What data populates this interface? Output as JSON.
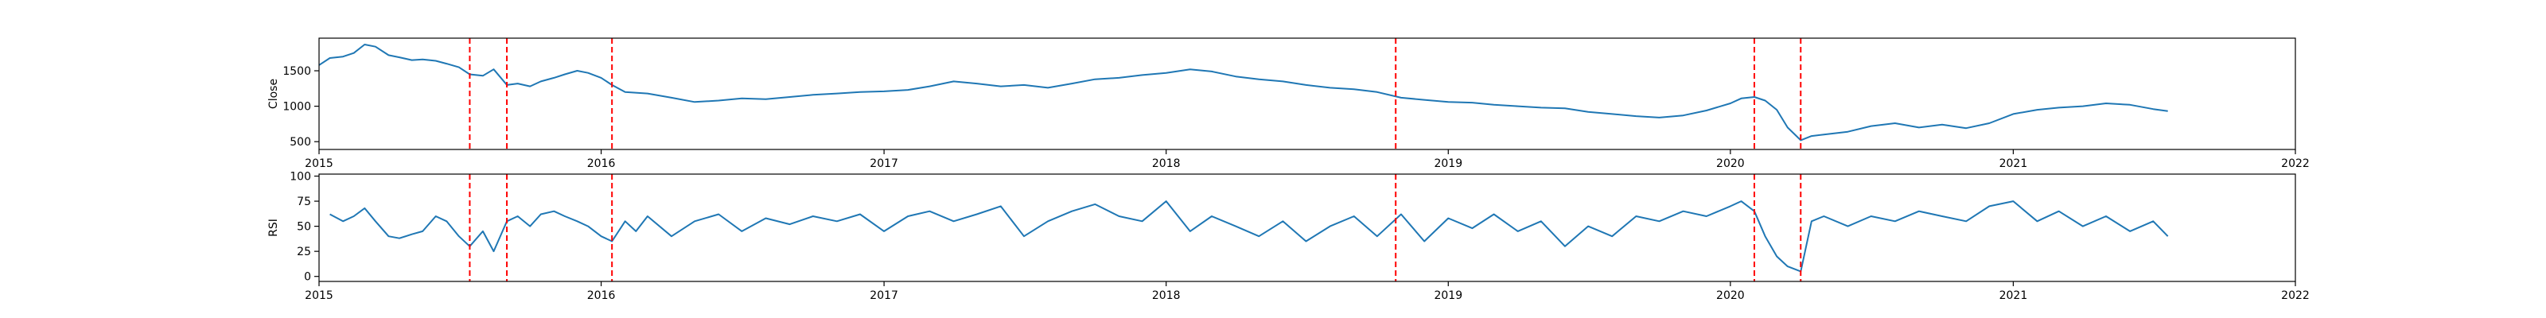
{
  "colors": {
    "line": "#1f77b4",
    "event": "#ff0000",
    "axis": "#000000",
    "background": "#ffffff"
  },
  "chart_data": [
    {
      "type": "line",
      "ylabel": "Close",
      "xlim": [
        "2015-01-01",
        "2022-01-01"
      ],
      "ylim": [
        390,
        1960
      ],
      "xticks": [
        "2015-01-01",
        "2016-01-01",
        "2017-01-01",
        "2018-01-01",
        "2019-01-01",
        "2020-01-01",
        "2021-01-01",
        "2022-01-01"
      ],
      "xtick_labels": [
        "2015",
        "2016",
        "2017",
        "2018",
        "2019",
        "2020",
        "2021",
        "2022"
      ],
      "yticks": [
        500,
        1000,
        1500
      ],
      "ytick_labels": [
        "500",
        "1000",
        "1500"
      ],
      "grid": false,
      "series": [
        {
          "x": [
            "2015-01-01",
            "2015-01-15",
            "2015-02-01",
            "2015-02-15",
            "2015-03-01",
            "2015-03-15",
            "2015-04-01",
            "2015-04-15",
            "2015-05-01",
            "2015-05-15",
            "2015-06-01",
            "2015-06-15",
            "2015-07-01",
            "2015-07-15",
            "2015-08-01",
            "2015-08-15",
            "2015-09-01",
            "2015-09-15",
            "2015-10-01",
            "2015-10-15",
            "2015-11-01",
            "2015-11-15",
            "2015-12-01",
            "2015-12-15",
            "2016-01-01",
            "2016-01-15",
            "2016-02-01",
            "2016-03-01",
            "2016-04-01",
            "2016-05-01",
            "2016-06-01",
            "2016-07-01",
            "2016-08-01",
            "2016-09-01",
            "2016-10-01",
            "2016-11-01",
            "2016-12-01",
            "2017-01-01",
            "2017-02-01",
            "2017-03-01",
            "2017-04-01",
            "2017-05-01",
            "2017-06-01",
            "2017-07-01",
            "2017-08-01",
            "2017-09-01",
            "2017-10-01",
            "2017-11-01",
            "2017-12-01",
            "2018-01-01",
            "2018-02-01",
            "2018-03-01",
            "2018-04-01",
            "2018-05-01",
            "2018-06-01",
            "2018-07-01",
            "2018-08-01",
            "2018-09-01",
            "2018-10-01",
            "2018-11-01",
            "2018-12-01",
            "2019-01-01",
            "2019-02-01",
            "2019-03-01",
            "2019-04-01",
            "2019-05-01",
            "2019-06-01",
            "2019-07-01",
            "2019-08-01",
            "2019-09-01",
            "2019-10-01",
            "2019-11-01",
            "2019-12-01",
            "2020-01-01",
            "2020-01-15",
            "2020-02-01",
            "2020-02-15",
            "2020-03-01",
            "2020-03-15",
            "2020-04-01",
            "2020-04-15",
            "2020-05-01",
            "2020-06-01",
            "2020-07-01",
            "2020-08-01",
            "2020-09-01",
            "2020-10-01",
            "2020-11-01",
            "2020-12-01",
            "2021-01-01",
            "2021-02-01",
            "2021-03-01",
            "2021-04-01",
            "2021-05-01",
            "2021-06-01",
            "2021-07-01",
            "2021-07-20"
          ],
          "y": [
            1580,
            1680,
            1700,
            1750,
            1870,
            1840,
            1720,
            1690,
            1650,
            1660,
            1640,
            1600,
            1550,
            1450,
            1430,
            1520,
            1300,
            1320,
            1280,
            1350,
            1400,
            1450,
            1500,
            1470,
            1400,
            1300,
            1200,
            1180,
            1120,
            1060,
            1080,
            1110,
            1100,
            1130,
            1160,
            1180,
            1200,
            1210,
            1230,
            1280,
            1350,
            1320,
            1280,
            1300,
            1260,
            1320,
            1380,
            1400,
            1440,
            1470,
            1520,
            1490,
            1420,
            1380,
            1350,
            1300,
            1260,
            1240,
            1200,
            1120,
            1090,
            1060,
            1050,
            1020,
            1000,
            980,
            970,
            920,
            890,
            860,
            840,
            870,
            940,
            1040,
            1110,
            1130,
            1080,
            950,
            700,
            520,
            580,
            600,
            640,
            720,
            760,
            700,
            740,
            690,
            760,
            890,
            950,
            980,
            1000,
            1040,
            1020,
            960,
            930
          ]
        }
      ],
      "event_dates": [
        "2015-07-15",
        "2015-09-01",
        "2016-01-15",
        "2018-10-25",
        "2020-02-01",
        "2020-04-01"
      ]
    },
    {
      "type": "line",
      "ylabel": "RSI",
      "xlim": [
        "2015-01-01",
        "2022-01-01"
      ],
      "ylim": [
        -5,
        102
      ],
      "xticks": [
        "2015-01-01",
        "2016-01-01",
        "2017-01-01",
        "2018-01-01",
        "2019-01-01",
        "2020-01-01",
        "2021-01-01",
        "2022-01-01"
      ],
      "xtick_labels": [
        "2015",
        "2016",
        "2017",
        "2018",
        "2019",
        "2020",
        "2021",
        "2022"
      ],
      "yticks": [
        0,
        25,
        50,
        75,
        100
      ],
      "ytick_labels": [
        "0",
        "25",
        "50",
        "75",
        "100"
      ],
      "grid": false,
      "series": [
        {
          "x": [
            "2015-01-15",
            "2015-02-01",
            "2015-02-15",
            "2015-03-01",
            "2015-03-15",
            "2015-04-01",
            "2015-04-15",
            "2015-05-01",
            "2015-05-15",
            "2015-06-01",
            "2015-06-15",
            "2015-07-01",
            "2015-07-15",
            "2015-08-01",
            "2015-08-15",
            "2015-09-01",
            "2015-09-15",
            "2015-10-01",
            "2015-10-15",
            "2015-11-01",
            "2015-11-15",
            "2015-12-01",
            "2015-12-15",
            "2016-01-01",
            "2016-01-15",
            "2016-02-01",
            "2016-02-15",
            "2016-03-01",
            "2016-04-01",
            "2016-05-01",
            "2016-06-01",
            "2016-07-01",
            "2016-08-01",
            "2016-09-01",
            "2016-10-01",
            "2016-11-01",
            "2016-12-01",
            "2017-01-01",
            "2017-02-01",
            "2017-03-01",
            "2017-04-01",
            "2017-05-01",
            "2017-06-01",
            "2017-07-01",
            "2017-08-01",
            "2017-09-01",
            "2017-10-01",
            "2017-11-01",
            "2017-12-01",
            "2018-01-01",
            "2018-02-01",
            "2018-03-01",
            "2018-04-01",
            "2018-05-01",
            "2018-06-01",
            "2018-07-01",
            "2018-08-01",
            "2018-09-01",
            "2018-10-01",
            "2018-11-01",
            "2018-12-01",
            "2019-01-01",
            "2019-02-01",
            "2019-03-01",
            "2019-04-01",
            "2019-05-01",
            "2019-06-01",
            "2019-07-01",
            "2019-08-01",
            "2019-09-01",
            "2019-10-01",
            "2019-11-01",
            "2019-12-01",
            "2020-01-01",
            "2020-01-15",
            "2020-02-01",
            "2020-02-15",
            "2020-03-01",
            "2020-03-15",
            "2020-04-01",
            "2020-04-15",
            "2020-05-01",
            "2020-06-01",
            "2020-07-01",
            "2020-08-01",
            "2020-09-01",
            "2020-10-01",
            "2020-11-01",
            "2020-12-01",
            "2021-01-01",
            "2021-02-01",
            "2021-03-01",
            "2021-04-01",
            "2021-05-01",
            "2021-06-01",
            "2021-07-01",
            "2021-07-20"
          ],
          "y": [
            62,
            55,
            60,
            68,
            55,
            40,
            38,
            42,
            45,
            60,
            55,
            40,
            30,
            45,
            25,
            55,
            60,
            50,
            62,
            65,
            60,
            55,
            50,
            40,
            35,
            55,
            45,
            60,
            40,
            55,
            62,
            45,
            58,
            52,
            60,
            55,
            62,
            45,
            60,
            65,
            55,
            62,
            70,
            40,
            55,
            65,
            72,
            60,
            55,
            75,
            45,
            60,
            50,
            40,
            55,
            35,
            50,
            60,
            40,
            62,
            35,
            58,
            48,
            62,
            45,
            55,
            30,
            50,
            40,
            60,
            55,
            65,
            60,
            70,
            75,
            65,
            40,
            20,
            10,
            5,
            55,
            60,
            50,
            60,
            55,
            65,
            60,
            55,
            70,
            75,
            55,
            65,
            50,
            60,
            45,
            55,
            40
          ]
        }
      ],
      "event_dates": [
        "2015-07-15",
        "2015-09-01",
        "2016-01-15",
        "2018-10-25",
        "2020-02-01",
        "2020-04-01"
      ]
    }
  ]
}
